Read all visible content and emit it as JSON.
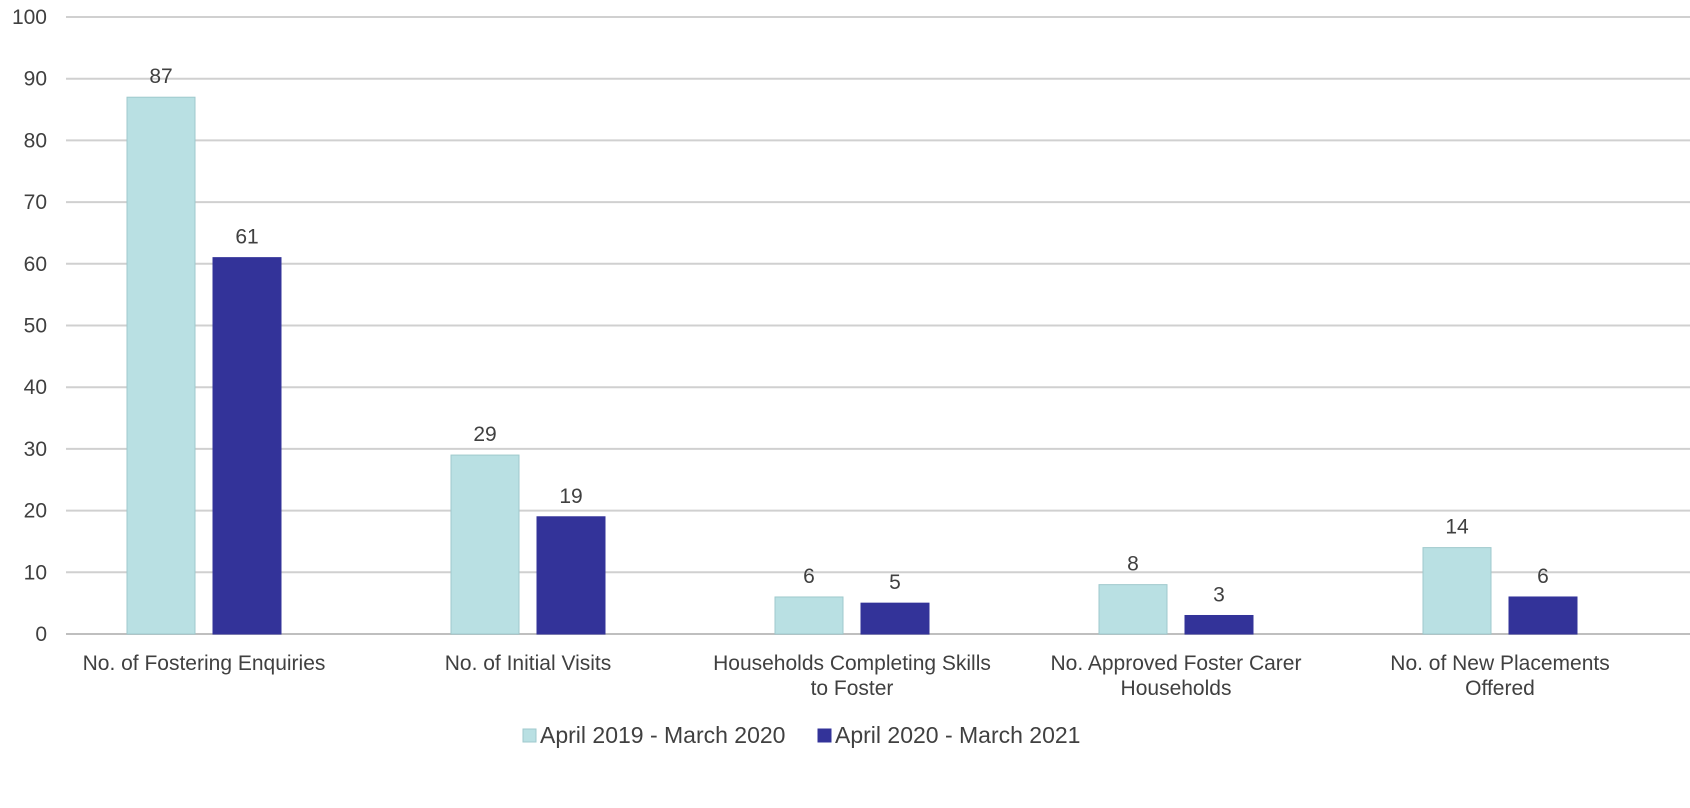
{
  "chart_data": {
    "type": "bar",
    "title": "",
    "xlabel": "",
    "ylabel": "",
    "ylim": [
      0,
      100
    ],
    "yticks": [
      0,
      10,
      20,
      30,
      40,
      50,
      60,
      70,
      80,
      90,
      100
    ],
    "grid": true,
    "legend_position": "bottom",
    "categories": [
      [
        "No. of Fostering Enquiries"
      ],
      [
        "No. of Initial Visits"
      ],
      [
        "Households Completing Skills",
        "to Foster"
      ],
      [
        "No. Approved Foster Carer",
        "Households"
      ],
      [
        "No. of New Placements",
        "Offered"
      ]
    ],
    "series": [
      {
        "name": "April 2019 - March 2020",
        "color": "#b9e0e3",
        "values": [
          87,
          29,
          6,
          8,
          14
        ]
      },
      {
        "name": "April 2020 - March 2021",
        "color": "#333399",
        "values": [
          61,
          19,
          5,
          3,
          6
        ]
      }
    ],
    "colors": {
      "grid": "#d0d0d0",
      "axis": "#bfbfbf",
      "text": "#404040"
    }
  }
}
